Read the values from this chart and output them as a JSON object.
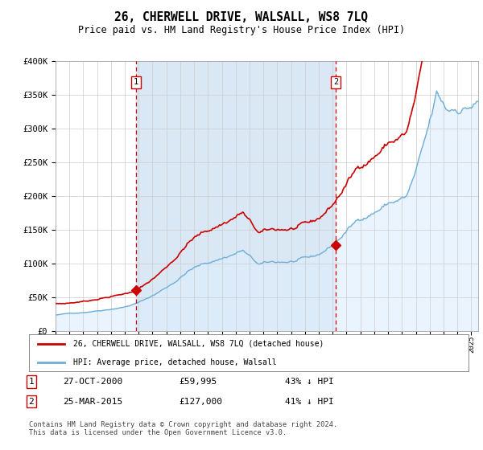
{
  "title": "26, CHERWELL DRIVE, WALSALL, WS8 7LQ",
  "subtitle": "Price paid vs. HM Land Registry's House Price Index (HPI)",
  "legend_line1": "26, CHERWELL DRIVE, WALSALL, WS8 7LQ (detached house)",
  "legend_line2": "HPI: Average price, detached house, Walsall",
  "table_row1": [
    "1",
    "27-OCT-2000",
    "£59,995",
    "43% ↓ HPI"
  ],
  "table_row2": [
    "2",
    "25-MAR-2015",
    "£127,000",
    "41% ↓ HPI"
  ],
  "footnote": "Contains HM Land Registry data © Crown copyright and database right 2024.\nThis data is licensed under the Open Government Licence v3.0.",
  "ylim": [
    0,
    400000
  ],
  "yticks": [
    0,
    50000,
    100000,
    150000,
    200000,
    250000,
    300000,
    350000,
    400000
  ],
  "xlim_start": 1995.0,
  "xlim_end": 2025.5,
  "purchase1_x": 2000.82,
  "purchase1_y": 59995,
  "purchase2_x": 2015.23,
  "purchase2_y": 127000,
  "hpi_color": "#6baed6",
  "hpi_fill_color": "#ddeeff",
  "price_color": "#cc0000",
  "vline_color": "#cc0000",
  "background_color": "#ffffff",
  "plot_bg_color": "#ffffff",
  "grid_color": "#cccccc",
  "shade_color": "#dae8f5"
}
